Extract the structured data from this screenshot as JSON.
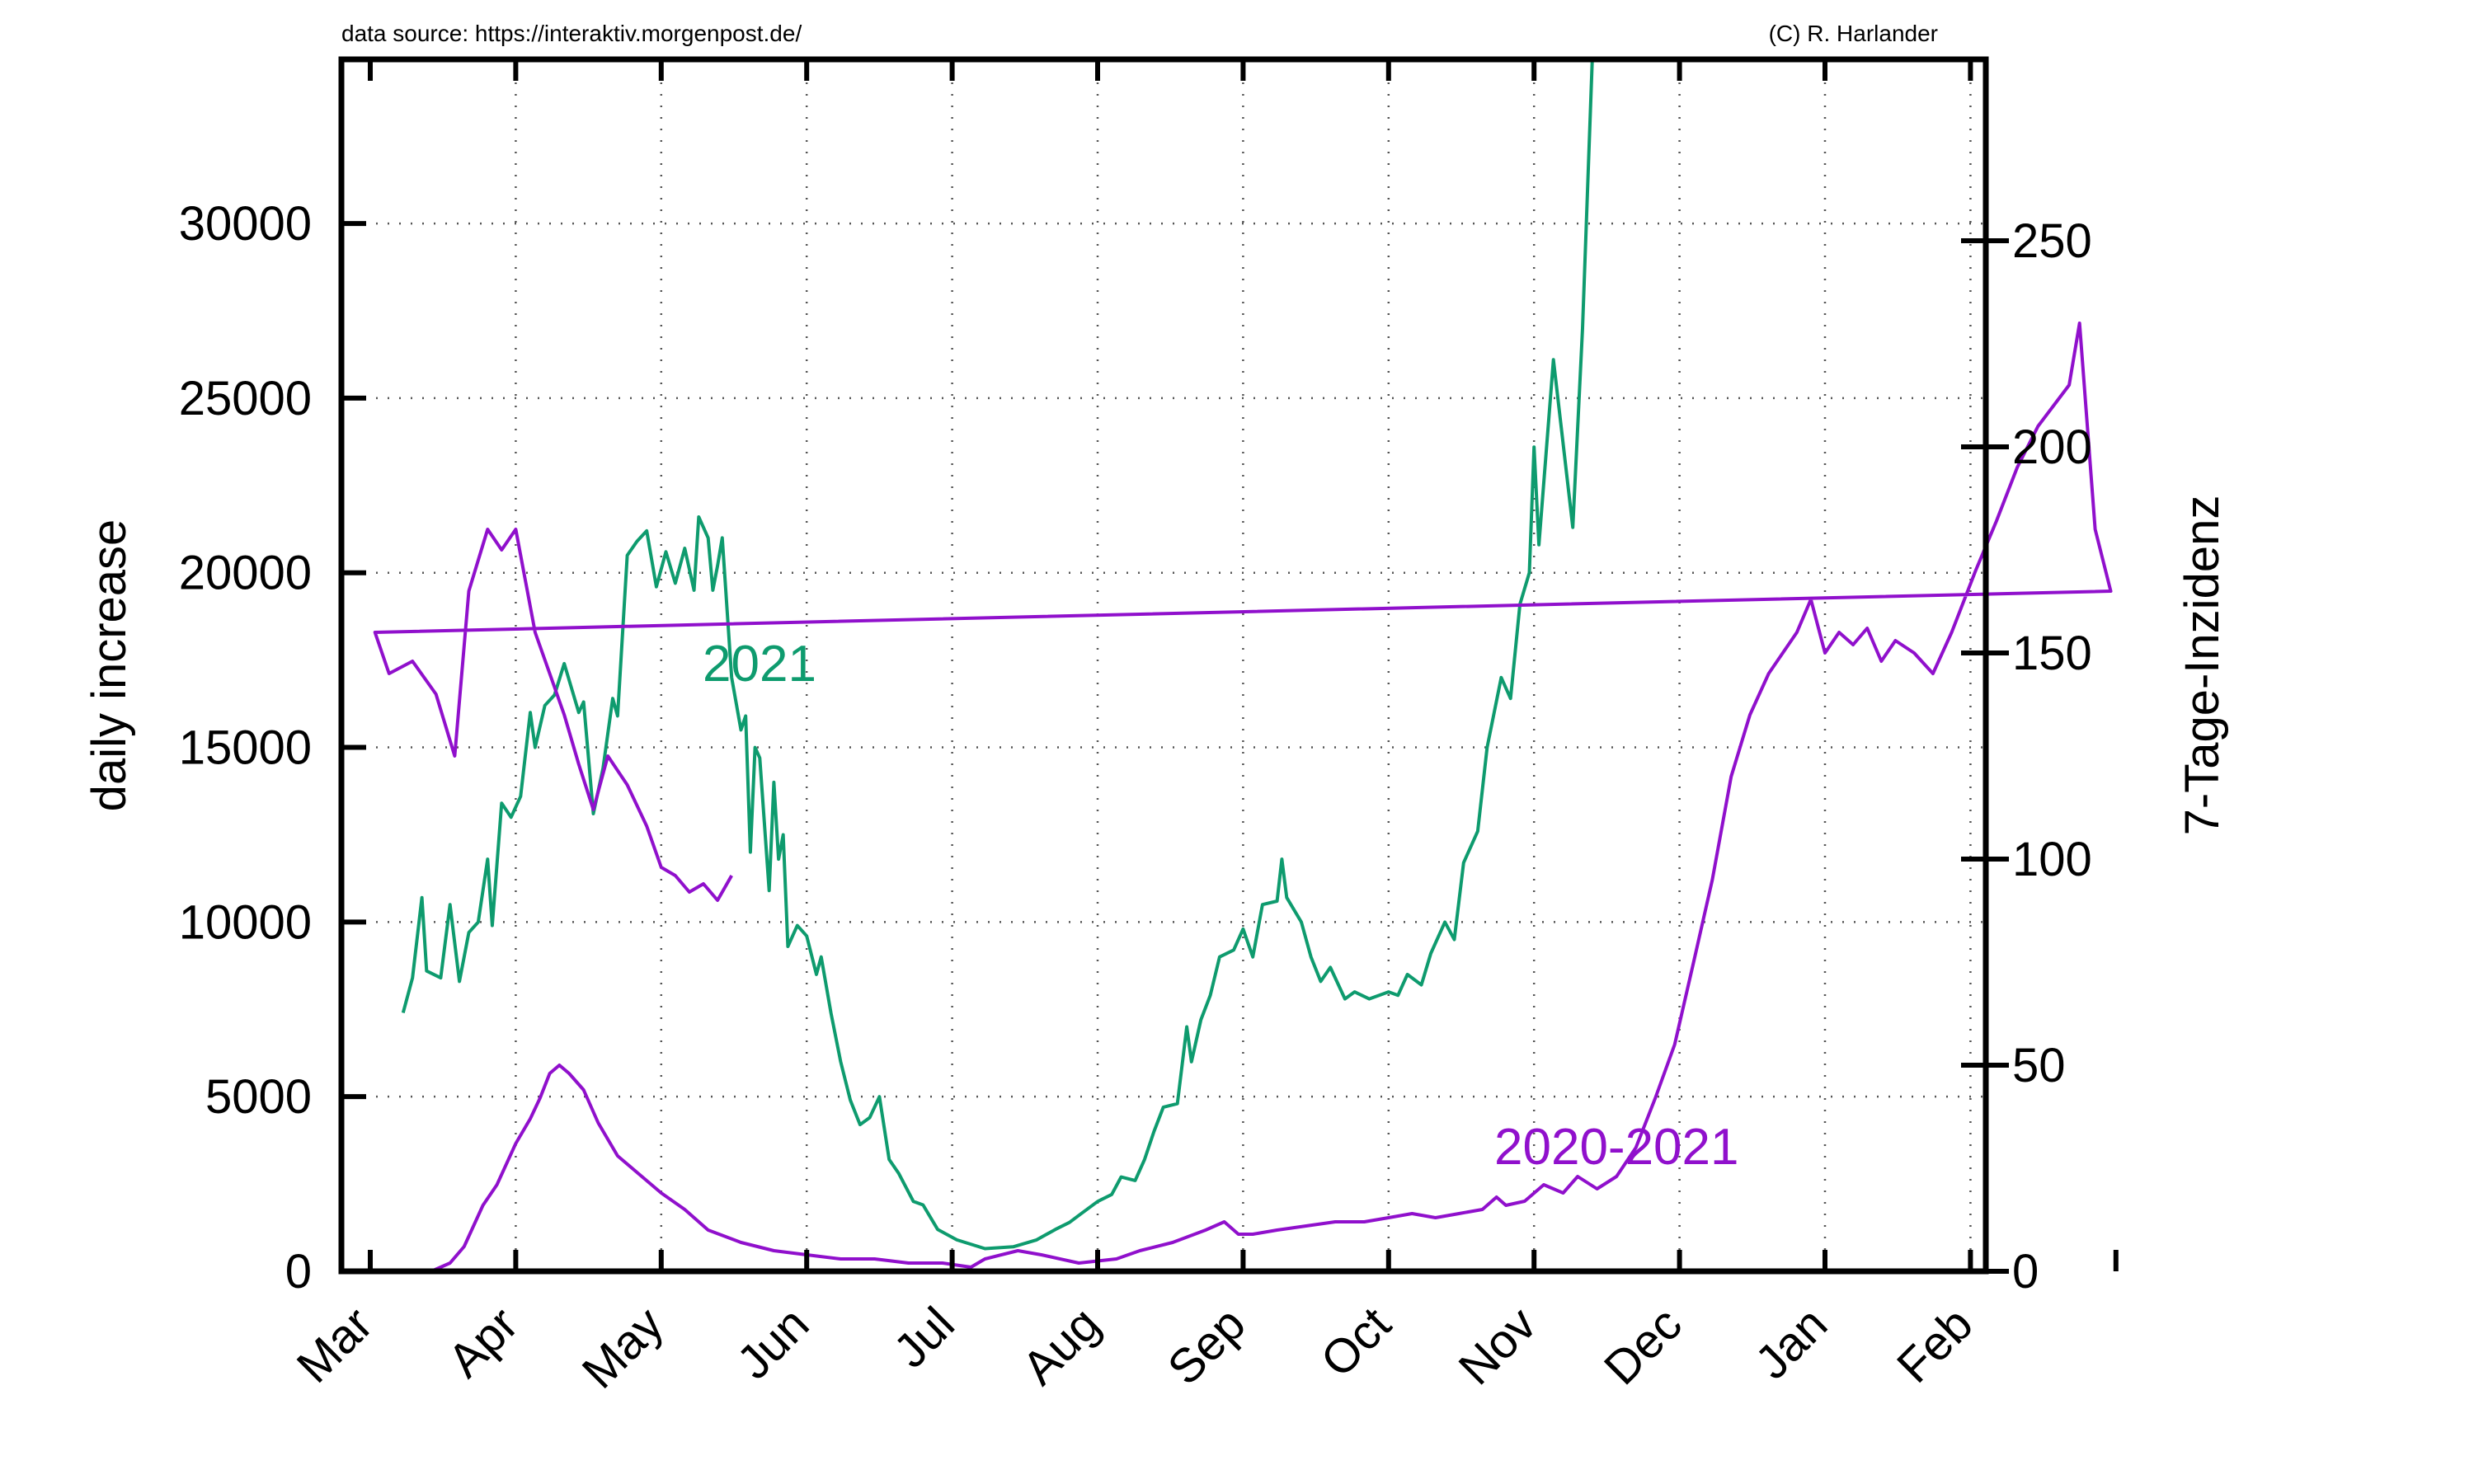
{
  "header": {
    "source_note": "data source: https://interaktiv.morgenpost.de/",
    "copyright_note": "(C) R. Harlander"
  },
  "chart_data": {
    "type": "line",
    "title": "",
    "xlabel": "",
    "ylabel": "daily increase",
    "y2label": "7-Tage-Inzidenz",
    "x_tick_labels": [
      "Mar",
      "Apr",
      "May",
      "Jun",
      "Jul",
      "Aug",
      "Sep",
      "Oct",
      "Nov",
      "Dec",
      "Jan",
      "Feb"
    ],
    "y_ticks": [
      0,
      5000,
      10000,
      15000,
      20000,
      25000,
      30000
    ],
    "y2_ticks": [
      0,
      50,
      100,
      150,
      200,
      250
    ],
    "ylim": [
      0,
      34700
    ],
    "y2lim": [
      0,
      294
    ],
    "grid": true,
    "colors": {
      "series_2021": "#0e9b6e",
      "series_2020_2021": "#9010cc"
    },
    "series": [
      {
        "name": "2021",
        "axis": "left",
        "color": "#0e9b6e",
        "label_position": "upper-middle",
        "points": [
          [
            "Mar 8",
            7400
          ],
          [
            "Mar 10",
            8400
          ],
          [
            "Mar 12",
            10700
          ],
          [
            "Mar 13",
            8600
          ],
          [
            "Mar 16",
            8400
          ],
          [
            "Mar 18",
            10500
          ],
          [
            "Mar 20",
            8300
          ],
          [
            "Mar 22",
            9700
          ],
          [
            "Mar 24",
            10000
          ],
          [
            "Mar 26",
            11800
          ],
          [
            "Mar 27",
            9900
          ],
          [
            "Mar 29",
            13400
          ],
          [
            "Mar 31",
            13000
          ],
          [
            "Apr 2",
            13600
          ],
          [
            "Apr 4",
            16000
          ],
          [
            "Apr 5",
            15000
          ],
          [
            "Apr 7",
            16200
          ],
          [
            "Apr 9",
            16500
          ],
          [
            "Apr 11",
            17400
          ],
          [
            "Apr 14",
            16000
          ],
          [
            "Apr 15",
            16300
          ],
          [
            "Apr 17",
            13100
          ],
          [
            "Apr 19",
            14400
          ],
          [
            "Apr 21",
            16400
          ],
          [
            "Apr 22",
            15900
          ],
          [
            "Apr 24",
            20500
          ],
          [
            "Apr 26",
            20900
          ],
          [
            "Apr 28",
            21200
          ],
          [
            "Apr 30",
            19600
          ],
          [
            "May 2",
            20600
          ],
          [
            "May 4",
            19700
          ],
          [
            "May 6",
            20700
          ],
          [
            "May 8",
            19500
          ],
          [
            "May 9",
            21600
          ],
          [
            "May 11",
            21000
          ],
          [
            "May 12",
            19500
          ],
          [
            "May 13",
            20200
          ],
          [
            "May 14",
            21000
          ],
          [
            "May 16",
            17000
          ],
          [
            "May 18",
            15500
          ],
          [
            "May 19",
            15900
          ],
          [
            "May 20",
            12000
          ],
          [
            "May 21",
            15000
          ],
          [
            "May 22",
            14700
          ],
          [
            "May 24",
            10900
          ],
          [
            "May 25",
            14000
          ],
          [
            "May 26",
            11800
          ],
          [
            "May 27",
            12500
          ],
          [
            "May 28",
            9300
          ],
          [
            "May 30",
            9900
          ],
          [
            "Jun 1",
            9600
          ],
          [
            "Jun 3",
            8500
          ],
          [
            "Jun 4",
            9000
          ],
          [
            "Jun 6",
            7400
          ],
          [
            "Jun 8",
            6000
          ],
          [
            "Jun 10",
            4900
          ],
          [
            "Jun 12",
            4200
          ],
          [
            "Jun 14",
            4400
          ],
          [
            "Jun 16",
            5000
          ],
          [
            "Jun 18",
            3200
          ],
          [
            "Jun 20",
            2800
          ],
          [
            "Jun 23",
            2000
          ],
          [
            "Jun 25",
            1900
          ],
          [
            "Jun 28",
            1200
          ],
          [
            "Jul 2",
            900
          ],
          [
            "Jul 8",
            650
          ],
          [
            "Jul 14",
            700
          ],
          [
            "Jul 19",
            900
          ],
          [
            "Jul 23",
            1200
          ],
          [
            "Jul 26",
            1400
          ],
          [
            "Jul 28",
            1600
          ],
          [
            "Aug 1",
            2000
          ],
          [
            "Aug 4",
            2200
          ],
          [
            "Aug 6",
            2700
          ],
          [
            "Aug 9",
            2600
          ],
          [
            "Aug 11",
            3200
          ],
          [
            "Aug 13",
            4000
          ],
          [
            "Aug 15",
            4700
          ],
          [
            "Aug 18",
            4800
          ],
          [
            "Aug 20",
            7000
          ],
          [
            "Aug 21",
            6000
          ],
          [
            "Aug 23",
            7200
          ],
          [
            "Aug 25",
            7900
          ],
          [
            "Aug 27",
            9000
          ],
          [
            "Aug 30",
            9200
          ],
          [
            "Sep 1",
            9800
          ],
          [
            "Sep 3",
            9000
          ],
          [
            "Sep 5",
            10500
          ],
          [
            "Sep 8",
            10600
          ],
          [
            "Sep 9",
            11800
          ],
          [
            "Sep 10",
            10700
          ],
          [
            "Sep 13",
            10000
          ],
          [
            "Sep 15",
            9000
          ],
          [
            "Sep 17",
            8300
          ],
          [
            "Sep 19",
            8700
          ],
          [
            "Sep 22",
            7800
          ],
          [
            "Sep 24",
            8000
          ],
          [
            "Sep 27",
            7800
          ],
          [
            "Oct 1",
            8000
          ],
          [
            "Oct 3",
            7900
          ],
          [
            "Oct 5",
            8500
          ],
          [
            "Oct 8",
            8200
          ],
          [
            "Oct 10",
            9100
          ],
          [
            "Oct 13",
            10000
          ],
          [
            "Oct 15",
            9500
          ],
          [
            "Oct 17",
            11700
          ],
          [
            "Oct 20",
            12600
          ],
          [
            "Oct 22",
            15000
          ],
          [
            "Oct 25",
            17000
          ],
          [
            "Oct 27",
            16400
          ],
          [
            "Oct 29",
            19100
          ],
          [
            "Oct 31",
            20000
          ],
          [
            "Nov 1",
            23600
          ],
          [
            "Nov 2",
            20800
          ],
          [
            "Nov 5",
            26100
          ],
          [
            "Nov 9",
            21300
          ],
          [
            "Nov 11",
            27000
          ],
          [
            "Nov 13",
            34700
          ]
        ]
      },
      {
        "name": "2020-2021",
        "axis": "right",
        "color": "#9010cc",
        "label_position": "lower-right",
        "points": [
          [
            "Mar 14",
            0
          ],
          [
            "Mar 18",
            2
          ],
          [
            "Mar 21",
            6
          ],
          [
            "Mar 25",
            16
          ],
          [
            "Mar 28",
            21
          ],
          [
            "Apr 1",
            31
          ],
          [
            "Apr 4",
            37
          ],
          [
            "Apr 6",
            42
          ],
          [
            "Apr 8",
            48
          ],
          [
            "Apr 10",
            50
          ],
          [
            "Apr 12",
            48
          ],
          [
            "Apr 15",
            44
          ],
          [
            "Apr 18",
            36
          ],
          [
            "Apr 22",
            28
          ],
          [
            "Apr 26",
            24
          ],
          [
            "May 1",
            19
          ],
          [
            "May 6",
            15
          ],
          [
            "May 11",
            10
          ],
          [
            "May 18",
            7
          ],
          [
            "May 25",
            5
          ],
          [
            "Jun 1",
            4
          ],
          [
            "Jun 8",
            3
          ],
          [
            "Jun 15",
            3
          ],
          [
            "Jun 22",
            2
          ],
          [
            "Jun 29",
            2
          ],
          [
            "Jul 5",
            1
          ],
          [
            "Jul 8",
            3
          ],
          [
            "Jul 15",
            5
          ],
          [
            "Jul 20",
            4
          ],
          [
            "Jul 28",
            2
          ],
          [
            "Aug 5",
            3
          ],
          [
            "Aug 10",
            5
          ],
          [
            "Aug 17",
            7
          ],
          [
            "Aug 24",
            10
          ],
          [
            "Aug 28",
            12
          ],
          [
            "Aug 31",
            9
          ],
          [
            "Sep 3",
            9
          ],
          [
            "Sep 8",
            10
          ],
          [
            "Sep 14",
            11
          ],
          [
            "Sep 20",
            12
          ],
          [
            "Sep 26",
            12
          ],
          [
            "Oct 1",
            13
          ],
          [
            "Oct 6",
            14
          ],
          [
            "Oct 11",
            13
          ],
          [
            "Oct 16",
            14
          ],
          [
            "Oct 21",
            15
          ],
          [
            "Oct 24",
            18
          ],
          [
            "Oct 26",
            16
          ],
          [
            "Oct 30",
            17
          ],
          [
            "Nov 3",
            21
          ],
          [
            "Nov 7",
            19
          ],
          [
            "Nov 10",
            23
          ],
          [
            "Nov 14",
            20
          ],
          [
            "Nov 18",
            23
          ],
          [
            "Nov 22",
            30
          ],
          [
            "Nov 26",
            42
          ],
          [
            "Nov 30",
            55
          ],
          [
            "Dec 4",
            75
          ],
          [
            "Dec 8",
            95
          ],
          [
            "Dec 12",
            120
          ],
          [
            "Dec 16",
            135
          ],
          [
            "Dec 20",
            145
          ],
          [
            "Dec 23",
            150
          ],
          [
            "Dec 26",
            155
          ],
          [
            "Dec 29",
            163
          ],
          [
            "Jan 1",
            150
          ],
          [
            "Jan 4",
            155
          ],
          [
            "Jan 7",
            152
          ],
          [
            "Jan 10",
            156
          ],
          [
            "Jan 13",
            148
          ],
          [
            "Jan 16",
            153
          ],
          [
            "Jan 20",
            150
          ],
          [
            "Jan 24",
            145
          ],
          [
            "Jan 28",
            155
          ],
          [
            "Feb 2",
            170
          ],
          [
            "Feb 6",
            182
          ],
          [
            "Feb 10",
            195
          ],
          [
            "Feb 14",
            205
          ],
          [
            "Feb 17",
            210
          ],
          [
            "Feb 20",
            215
          ],
          [
            "Feb 22",
            230
          ],
          [
            "Feb 25",
            180
          ],
          [
            "Feb 28",
            165
          ],
          [
            "Mar 2",
            155
          ],
          [
            "Mar 5",
            145
          ],
          [
            "Mar 10",
            148
          ],
          [
            "Mar 15",
            140
          ],
          [
            "Mar 19",
            125
          ],
          [
            "Mar 22",
            165
          ],
          [
            "Mar 26",
            180
          ],
          [
            "Mar 29",
            175
          ],
          [
            "Apr 1",
            180
          ],
          [
            "Apr 5",
            155
          ],
          [
            "Apr 8",
            145
          ],
          [
            "Apr 11",
            135
          ],
          [
            "Apr 14",
            123
          ],
          [
            "Apr 17",
            112
          ],
          [
            "Apr 20",
            125
          ],
          [
            "Apr 24",
            118
          ],
          [
            "Apr 28",
            108
          ],
          [
            "May 1",
            98
          ],
          [
            "May 4",
            96
          ],
          [
            "May 7",
            92
          ],
          [
            "May 10",
            94
          ],
          [
            "May 13",
            90
          ],
          [
            "May 16",
            96
          ]
        ]
      }
    ]
  }
}
